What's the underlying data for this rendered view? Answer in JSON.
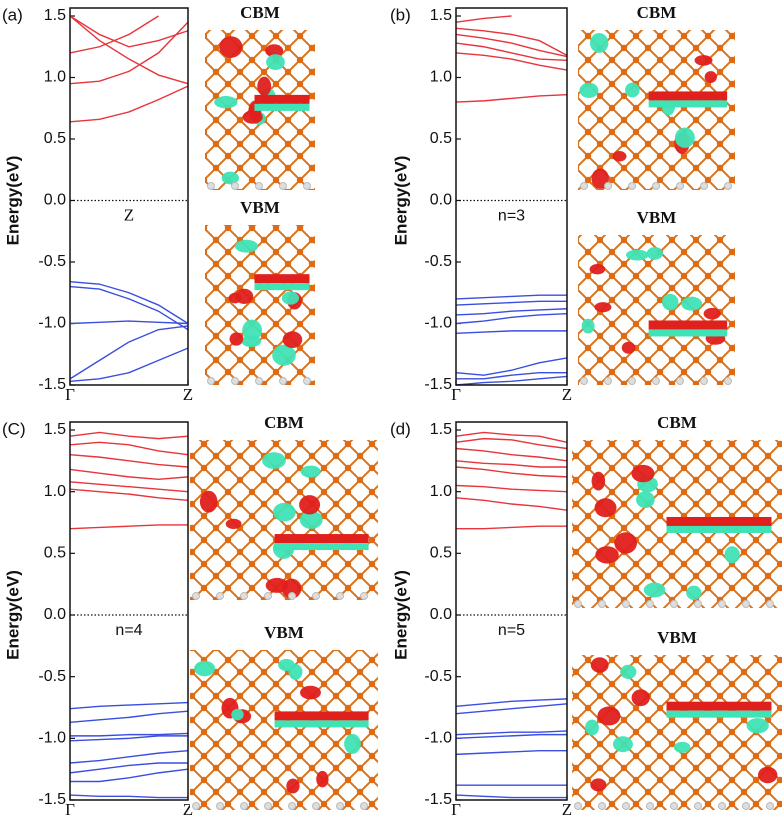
{
  "chart_data": [
    {
      "type": "line",
      "panel_label": "(a)",
      "ylabel": "Energy(eV)",
      "annotation": "Z",
      "image_labels": [
        "CBM",
        "VBM"
      ],
      "x": [
        0,
        0.25,
        0.5,
        0.75,
        1
      ],
      "xlim": [
        0,
        1
      ],
      "xticks": [
        {
          "value": 0,
          "label": "Γ"
        },
        {
          "value": 1,
          "label": "Z"
        }
      ],
      "ylim": [
        -1.5,
        1.5
      ],
      "yticks": [
        -1.5,
        {
          "value": -1,
          "label": "-1.0"
        },
        -0.5,
        {
          "value": 0,
          "label": "0.0"
        },
        0.5,
        {
          "value": 1,
          "label": "1.0"
        },
        1.5
      ],
      "reference_line": 0,
      "series": [
        {
          "color": "#e8343a",
          "values": [
            0.64,
            0.66,
            0.72,
            0.82,
            0.93
          ]
        },
        {
          "color": "#e8343a",
          "values": [
            0.95,
            0.97,
            1.05,
            1.2,
            1.45
          ]
        },
        {
          "color": "#e8343a",
          "values": [
            1.5,
            1.3,
            1.15,
            1.02,
            0.95
          ]
        },
        {
          "color": "#e8343a",
          "values": [
            1.5,
            1.35,
            1.25,
            1.3,
            1.38
          ]
        },
        {
          "color": "#e8343a",
          "values": [
            1.2,
            1.25,
            1.35,
            1.5,
            null
          ]
        },
        {
          "color": "#3a4ee0",
          "values": [
            -0.66,
            -0.68,
            -0.75,
            -0.85,
            -1.0
          ]
        },
        {
          "color": "#3a4ee0",
          "values": [
            -0.7,
            -0.72,
            -0.8,
            -0.9,
            -1.05
          ]
        },
        {
          "color": "#3a4ee0",
          "values": [
            -1.0,
            -0.99,
            -0.98,
            -0.99,
            -1.0
          ]
        },
        {
          "color": "#3a4ee0",
          "values": [
            -1.45,
            -1.3,
            -1.15,
            -1.05,
            -1.02
          ]
        },
        {
          "color": "#3a4ee0",
          "values": [
            -1.47,
            -1.45,
            -1.4,
            -1.3,
            -1.2
          ]
        }
      ]
    },
    {
      "type": "line",
      "panel_label": "(b)",
      "ylabel": "Energy(eV)",
      "annotation": "n=3",
      "image_labels": [
        "CBM",
        "VBM"
      ],
      "x": [
        0,
        0.25,
        0.5,
        0.75,
        1
      ],
      "xlim": [
        0,
        1
      ],
      "xticks": [
        {
          "value": 0,
          "label": "Γ"
        },
        {
          "value": 1,
          "label": "Z"
        }
      ],
      "ylim": [
        -1.5,
        1.5
      ],
      "yticks": [
        -1.5,
        {
          "value": -1,
          "label": "-1.0"
        },
        -0.5,
        {
          "value": 0,
          "label": "0.0"
        },
        0.5,
        {
          "value": 1,
          "label": "1.0"
        },
        1.5
      ],
      "reference_line": 0,
      "series": [
        {
          "color": "#e8343a",
          "values": [
            0.8,
            0.81,
            0.83,
            0.85,
            0.86
          ]
        },
        {
          "color": "#e8343a",
          "values": [
            1.2,
            1.18,
            1.15,
            1.1,
            1.06
          ]
        },
        {
          "color": "#e8343a",
          "values": [
            1.28,
            1.25,
            1.2,
            1.15,
            1.14
          ]
        },
        {
          "color": "#e8343a",
          "values": [
            1.35,
            1.32,
            1.28,
            1.22,
            1.17
          ]
        },
        {
          "color": "#e8343a",
          "values": [
            1.4,
            1.38,
            1.35,
            1.3,
            1.18
          ]
        },
        {
          "color": "#e8343a",
          "values": [
            1.45,
            1.48,
            1.5,
            null,
            null
          ]
        },
        {
          "color": "#3a4ee0",
          "values": [
            -0.8,
            -0.79,
            -0.78,
            -0.77,
            -0.77
          ]
        },
        {
          "color": "#3a4ee0",
          "values": [
            -0.85,
            -0.84,
            -0.83,
            -0.82,
            -0.82
          ]
        },
        {
          "color": "#3a4ee0",
          "values": [
            -0.93,
            -0.92,
            -0.9,
            -0.89,
            -0.88
          ]
        },
        {
          "color": "#3a4ee0",
          "values": [
            -1.0,
            -0.98,
            -0.95,
            -0.93,
            -0.92
          ]
        },
        {
          "color": "#3a4ee0",
          "values": [
            -1.08,
            -1.07,
            -1.06,
            -1.06,
            -1.06
          ]
        },
        {
          "color": "#3a4ee0",
          "values": [
            -1.4,
            -1.42,
            -1.38,
            -1.32,
            -1.28
          ]
        },
        {
          "color": "#3a4ee0",
          "values": [
            -1.45,
            -1.45,
            -1.42,
            -1.4,
            -1.4
          ]
        },
        {
          "color": "#3a4ee0",
          "values": [
            -1.5,
            -1.48,
            -1.47,
            -1.45,
            -1.43
          ]
        }
      ]
    },
    {
      "type": "line",
      "panel_label": "(C)",
      "ylabel": "Energy(eV)",
      "annotation": "n=4",
      "image_labels": [
        "CBM",
        "VBM"
      ],
      "x": [
        0,
        0.25,
        0.5,
        0.75,
        1
      ],
      "xlim": [
        0,
        1
      ],
      "xticks": [
        {
          "value": 0,
          "label": "Γ"
        },
        {
          "value": 1,
          "label": "Z"
        }
      ],
      "ylim": [
        -1.5,
        1.5
      ],
      "yticks": [
        -1.5,
        {
          "value": -1,
          "label": "-1.0"
        },
        -0.5,
        {
          "value": 0,
          "label": "0.0"
        },
        0.5,
        {
          "value": 1,
          "label": "1.0"
        },
        1.5
      ],
      "reference_line": 0,
      "series": [
        {
          "color": "#e8343a",
          "values": [
            0.7,
            0.71,
            0.72,
            0.73,
            0.73
          ]
        },
        {
          "color": "#e8343a",
          "values": [
            1.02,
            1.0,
            0.98,
            0.95,
            0.93
          ]
        },
        {
          "color": "#e8343a",
          "values": [
            1.08,
            1.06,
            1.04,
            1.02,
            1.0
          ]
        },
        {
          "color": "#e8343a",
          "values": [
            1.18,
            1.15,
            1.12,
            1.1,
            1.12
          ]
        },
        {
          "color": "#e8343a",
          "values": [
            1.3,
            1.28,
            1.25,
            1.22,
            1.2
          ]
        },
        {
          "color": "#e8343a",
          "values": [
            1.38,
            1.4,
            1.38,
            1.33,
            1.3
          ]
        },
        {
          "color": "#e8343a",
          "values": [
            1.45,
            1.48,
            1.45,
            1.43,
            1.45
          ]
        },
        {
          "color": "#3a4ee0",
          "values": [
            -0.76,
            -0.74,
            -0.73,
            -0.72,
            -0.71
          ]
        },
        {
          "color": "#3a4ee0",
          "values": [
            -0.87,
            -0.85,
            -0.83,
            -0.8,
            -0.78
          ]
        },
        {
          "color": "#3a4ee0",
          "values": [
            -0.98,
            -0.98,
            -0.97,
            -0.97,
            -0.96
          ]
        },
        {
          "color": "#3a4ee0",
          "values": [
            -1.02,
            -1.01,
            -1.0,
            -0.98,
            -0.98
          ]
        },
        {
          "color": "#3a4ee0",
          "values": [
            -1.2,
            -1.18,
            -1.15,
            -1.12,
            -1.1
          ]
        },
        {
          "color": "#3a4ee0",
          "values": [
            -1.28,
            -1.25,
            -1.22,
            -1.2,
            -1.2
          ]
        },
        {
          "color": "#3a4ee0",
          "values": [
            -1.35,
            -1.35,
            -1.32,
            -1.28,
            -1.25
          ]
        },
        {
          "color": "#3a4ee0",
          "values": [
            -1.46,
            -1.47,
            -1.47,
            -1.48,
            -1.48
          ]
        }
      ]
    },
    {
      "type": "line",
      "panel_label": "(d)",
      "ylabel": "Energy(eV)",
      "annotation": "n=5",
      "image_labels": [
        "CBM",
        "VBM"
      ],
      "x": [
        0,
        0.25,
        0.5,
        0.75,
        1
      ],
      "xlim": [
        0,
        1
      ],
      "xticks": [
        {
          "value": 0,
          "label": "Γ"
        },
        {
          "value": 1,
          "label": "Z"
        }
      ],
      "ylim": [
        -1.5,
        1.5
      ],
      "yticks": [
        -1.5,
        {
          "value": -1,
          "label": "-1.0"
        },
        -0.5,
        {
          "value": 0,
          "label": "0.0"
        },
        0.5,
        {
          "value": 1,
          "label": "1.0"
        },
        1.5
      ],
      "reference_line": 0,
      "series": [
        {
          "color": "#e8343a",
          "values": [
            0.7,
            0.7,
            0.71,
            0.72,
            0.72
          ]
        },
        {
          "color": "#e8343a",
          "values": [
            0.95,
            0.93,
            0.9,
            0.88,
            0.85
          ]
        },
        {
          "color": "#e8343a",
          "values": [
            1.05,
            1.04,
            1.02,
            1.01,
            1.0
          ]
        },
        {
          "color": "#e8343a",
          "values": [
            1.2,
            1.18,
            1.15,
            1.13,
            1.12
          ]
        },
        {
          "color": "#e8343a",
          "values": [
            1.25,
            1.23,
            1.22,
            1.2,
            1.2
          ]
        },
        {
          "color": "#e8343a",
          "values": [
            1.35,
            1.33,
            1.3,
            1.28,
            1.25
          ]
        },
        {
          "color": "#e8343a",
          "values": [
            1.4,
            1.43,
            1.42,
            1.38,
            1.35
          ]
        },
        {
          "color": "#e8343a",
          "values": [
            1.45,
            1.48,
            1.46,
            1.45,
            1.4
          ]
        },
        {
          "color": "#3a4ee0",
          "values": [
            -0.74,
            -0.72,
            -0.7,
            -0.69,
            -0.68
          ]
        },
        {
          "color": "#3a4ee0",
          "values": [
            -0.8,
            -0.78,
            -0.76,
            -0.74,
            -0.72
          ]
        },
        {
          "color": "#3a4ee0",
          "values": [
            -0.97,
            -0.96,
            -0.95,
            -0.95,
            -0.94
          ]
        },
        {
          "color": "#3a4ee0",
          "values": [
            -1.0,
            -0.99,
            -0.98,
            -0.97,
            -0.97
          ]
        },
        {
          "color": "#3a4ee0",
          "values": [
            -1.13,
            -1.12,
            -1.11,
            -1.1,
            -1.1
          ]
        },
        {
          "color": "#3a4ee0",
          "values": [
            -1.38,
            -1.38,
            -1.38,
            -1.38,
            -1.38
          ]
        },
        {
          "color": "#3a4ee0",
          "values": [
            -1.46,
            -1.47,
            -1.48,
            -1.48,
            -1.48
          ]
        }
      ]
    }
  ]
}
